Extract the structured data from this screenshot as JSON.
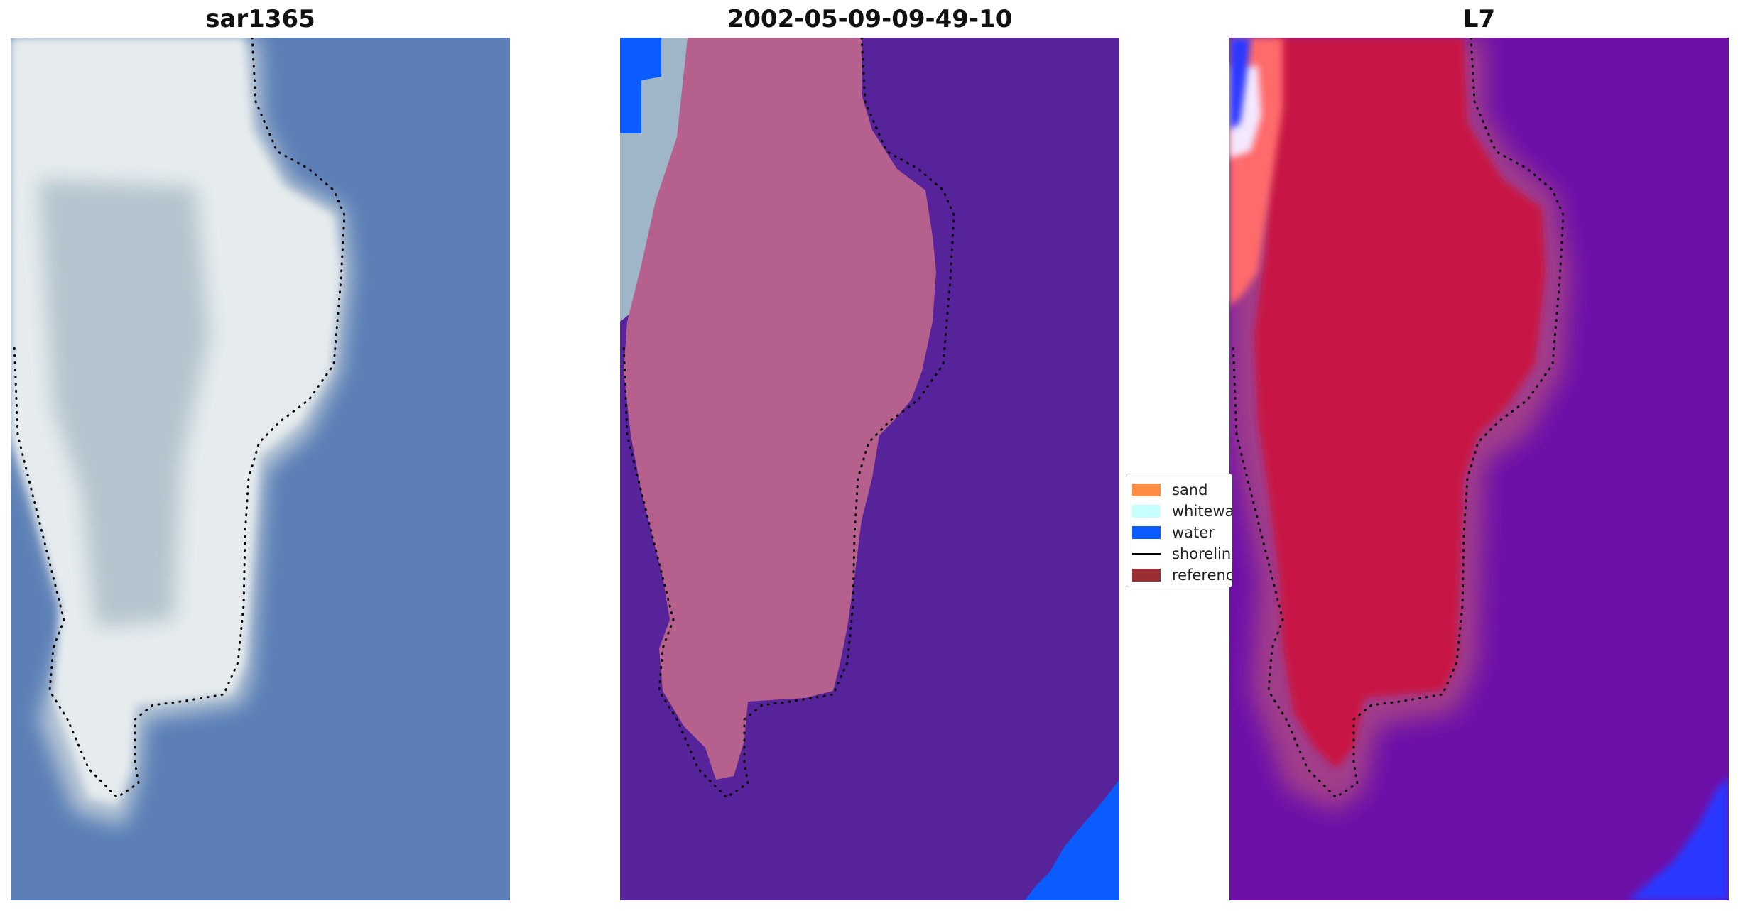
{
  "panels": [
    {
      "title": "sar1365"
    },
    {
      "title": "2002-05-09-09-49-10"
    },
    {
      "title": "L7"
    }
  ],
  "legend": {
    "items": [
      {
        "label": "sand",
        "color": "#ff8c42",
        "kind": "patch"
      },
      {
        "label": "whitewater",
        "color": "#c8ffff",
        "kind": "patch"
      },
      {
        "label": "water",
        "color": "#0a5cff",
        "kind": "patch"
      },
      {
        "label": "shoreline",
        "color": "#000000",
        "kind": "line"
      },
      {
        "label": "reference",
        "color": "#9b2d35",
        "kind": "patch"
      }
    ]
  },
  "colors": {
    "rgb_water": "#5b7fb6",
    "rgb_sand": "#e9eef0",
    "class_background": "#56239a",
    "class_sand_overlay": "#b5608d",
    "class_water": "#0a5cff",
    "index_background": "#6d10a8",
    "index_land": "#c71445",
    "index_edge_red": "#ff5a5a",
    "index_blue": "#2b39ff",
    "shoreline": "#000000"
  }
}
